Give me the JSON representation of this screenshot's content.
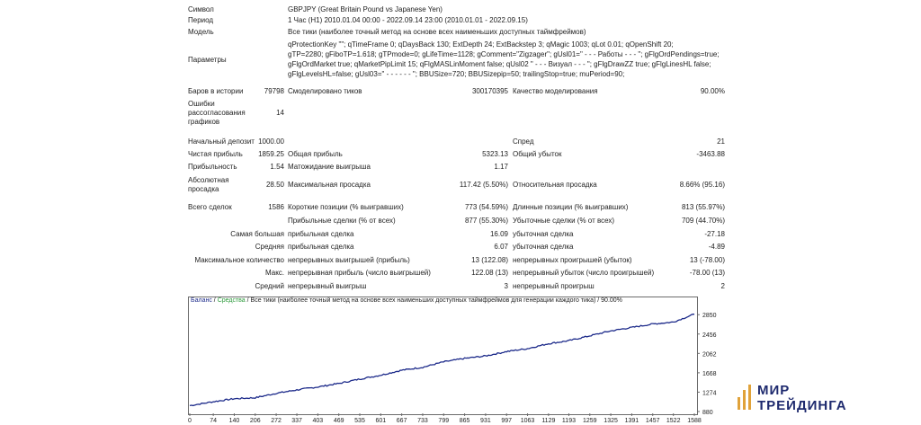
{
  "top": {
    "symbol_label": "Символ",
    "symbol_value": "GBPJPY (Great Britain Pound vs Japanese Yen)",
    "period_label": "Период",
    "period_value": "1 Час (H1) 2010.01.04 00:00 - 2022.09.14 23:00 (2010.01.01 - 2022.09.15)",
    "model_label": "Модель",
    "model_value": "Все тики (наиболее точный метод на основе всех наименьших доступных таймфреймов)",
    "params_label": "Параметры",
    "params_lines": [
      "qProtectionKey \"\"; qTimeFrame 0; qDaysBack 130; ExtDepth 24; ExtBackstep 3; qMagic 1003; qLot 0.01; qOpenShift 20;",
      "gTP=2280; gFiboTP=1.618; gTPmode=0; gLifeTime=1128; gComment=\"Zigzager\"; gUsl01=\" - - - Работы - - - \"; gFlgOrdPendings=true;",
      "gFlgOrdMarket true; qMarketPipLimit 15; qFlgMASLinMoment false; qUsl02 \" - - - Визуал - - - \"; gFlgDrawZZ true; gFlgLinesHL false;",
      "gFlgLevelsHL=false; gUsl03=\" - - - - - - \"; BBUSize=720; BBUSizepip=50; trailingStop=true; muPeriod=90;"
    ]
  },
  "stats": {
    "bars_label": "Баров в истории",
    "bars_value": "79798",
    "ticks_label": "Смоделировано тиков",
    "ticks_value": "300170395",
    "quality_label": "Качество моделирования",
    "quality_value": "90.00%",
    "errors_label_1": "Ошибки",
    "errors_label_2": "рассогласования",
    "errors_label_3": "графиков",
    "errors_value": "14",
    "deposit_label": "Начальный депозит",
    "deposit_value": "1000.00",
    "spread_label": "Спред",
    "spread_value": "21",
    "netprofit_label": "Чистая прибыль",
    "netprofit_value": "1859.25",
    "grossprofit_label": "Общая прибыль",
    "grossprofit_value": "5323.13",
    "grossloss_label": "Общий убыток",
    "grossloss_value": "-3463.88",
    "pf_label": "Прибыльность",
    "pf_value": "1.54",
    "expected_label": "Матожидание выигрыша",
    "expected_value": "1.17",
    "absdd_label_1": "Абсолютная",
    "absdd_label_2": "просадка",
    "absdd_value": "28.50",
    "maxdd_label": "Максимальная просадка",
    "maxdd_value": "117.42 (5.50%)",
    "reldd_label": "Относительная просадка",
    "reldd_value": "8.66% (95.16)",
    "trades_label": "Всего сделок",
    "trades_value": "1586",
    "short_label": "Короткие позиции (% выигравших)",
    "short_value": "773 (54.59%)",
    "long_label": "Длинные позиции (% выигравших)",
    "long_value": "813 (55.97%)",
    "profit_trades_label": "Прибыльные сделки (% от всех)",
    "profit_trades_value": "877 (55.30%)",
    "loss_trades_label": "Убыточные сделки (% от всех)",
    "loss_trades_value": "709 (44.70%)",
    "largest_label_a": "Самая большая",
    "largest_profit_label": "прибыльная сделка",
    "largest_profit_value": "16.09",
    "largest_loss_label": "убыточная сделка",
    "largest_loss_value": "-27.18",
    "avg_label_a": "Средняя",
    "avg_profit_label": "прибыльная сделка",
    "avg_profit_value": "6.07",
    "avg_loss_label": "убыточная сделка",
    "avg_loss_value": "-4.89",
    "maxcons_label_a": "Максимальное количество",
    "maxcons_wins_label": "непрерывных выигрышей (прибыль)",
    "maxcons_wins_value": "13 (122.08)",
    "maxcons_losses_label": "непрерывных проигрышей (убыток)",
    "maxcons_losses_value": "13 (-78.00)",
    "maxconsp_label_a": "Макс.",
    "maxconsp_wins_label": "непрерывная прибыль (число выигрышей)",
    "maxconsp_wins_value": "122.08 (13)",
    "maxconsp_losses_label": "непрерывный убыток (число проигрышей)",
    "maxconsp_losses_value": "-78.00 (13)",
    "avgcons_label_a": "Средний",
    "avgcons_wins_label": "непрерывный выигрыш",
    "avgcons_wins_value": "3",
    "avgcons_losses_label": "непрерывный проигрыш",
    "avgcons_losses_value": "2"
  },
  "chart_header": {
    "balance": "Баланс",
    "sep1": " / ",
    "equity": "Средства",
    "rest": " / Все тики (наиболее точный метод на основе всех наименьших доступных таймфреймов для генерации каждого тика) / 90.00%"
  },
  "watermark": {
    "line1": "МИР",
    "line2": "ТРЕЙДИНГА"
  },
  "colors": {
    "balance": "#1c2a8a",
    "equity": "#2b9a3a",
    "frame": "#6b6b6b"
  },
  "chart_data": {
    "type": "line",
    "title": "",
    "xlabel": "",
    "ylabel": "",
    "x_ticks": [
      "0",
      "74",
      "140",
      "206",
      "272",
      "337",
      "403",
      "469",
      "535",
      "601",
      "667",
      "733",
      "799",
      "865",
      "931",
      "997",
      "1063",
      "1129",
      "1193",
      "1259",
      "1325",
      "1391",
      "1457",
      "1522",
      "1588"
    ],
    "y_ticks": [
      "880",
      "1274",
      "1668",
      "2062",
      "2456",
      "2850"
    ],
    "xlim": [
      0,
      1588
    ],
    "ylim": [
      880,
      3000
    ],
    "series": [
      {
        "name": "Баланс",
        "x": [
          0,
          74,
          140,
          206,
          272,
          337,
          403,
          469,
          535,
          601,
          667,
          733,
          799,
          865,
          931,
          997,
          1063,
          1129,
          1193,
          1259,
          1325,
          1391,
          1457,
          1522,
          1588
        ],
        "y": [
          1000,
          1080,
          1140,
          1160,
          1250,
          1320,
          1380,
          1450,
          1540,
          1620,
          1720,
          1780,
          1890,
          1960,
          2010,
          2100,
          2160,
          2260,
          2320,
          2420,
          2520,
          2590,
          2660,
          2700,
          2860
        ]
      }
    ]
  }
}
